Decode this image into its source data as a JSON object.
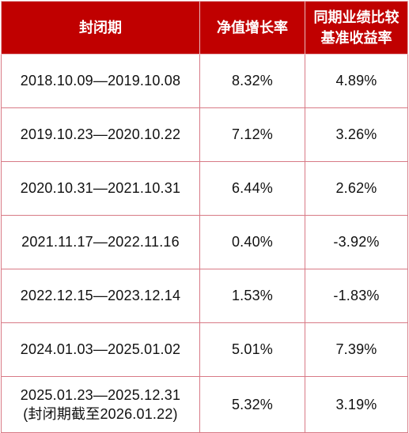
{
  "header": {
    "col_period": "封闭期",
    "col_nav_growth": "净值增长率",
    "col_benchmark_line1": "同期业绩比较",
    "col_benchmark_line2": "基准收益率"
  },
  "rows": [
    {
      "period": "2018.10.09—2019.10.08",
      "nav_growth": "8.32%",
      "benchmark": "4.89%"
    },
    {
      "period": "2019.10.23—2020.10.22",
      "nav_growth": "7.12%",
      "benchmark": "3.26%"
    },
    {
      "period": "2020.10.31—2021.10.31",
      "nav_growth": "6.44%",
      "benchmark": "2.62%"
    },
    {
      "period": "2021.11.17—2022.11.16",
      "nav_growth": "0.40%",
      "benchmark": "-3.92%"
    },
    {
      "period": "2022.12.15—2023.12.14",
      "nav_growth": "1.53%",
      "benchmark": "-1.83%"
    },
    {
      "period": "2024.01.03—2025.01.02",
      "nav_growth": "5.01%",
      "benchmark": "7.39%"
    },
    {
      "period": "2025.01.23—2025.12.31",
      "period_note": "(封闭期截至2026.01.22)",
      "nav_growth": "5.32%",
      "benchmark": "3.19%"
    }
  ],
  "colors": {
    "header_bg": "#c00000",
    "header_text": "#ffffff",
    "grid_line": "#d87a86"
  }
}
